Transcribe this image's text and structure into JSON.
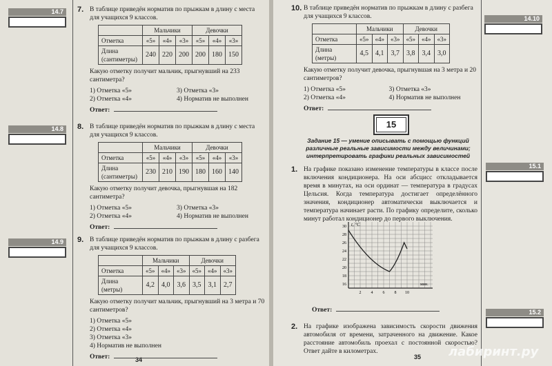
{
  "left_page": {
    "page_number": "34",
    "tasks": [
      {
        "margin_label": "14.7",
        "number": "7.",
        "intro": "В таблице приведён норматив по прыжкам в длину с места для учащихся 9 классов.",
        "table": {
          "groups": [
            "Мальчики",
            "Девочки"
          ],
          "grade_label": "Отметка",
          "grades": [
            "«5»",
            "«4»",
            "«3»",
            "«5»",
            "«4»",
            "«3»"
          ],
          "row_label": "Длина (сантиметры)",
          "values": [
            "240",
            "220",
            "200",
            "200",
            "180",
            "150"
          ]
        },
        "question": "Какую отметку получит мальчик, прыгнувший на 233 сантиметра?",
        "options": [
          "1) Отметка «5»",
          "2) Отметка «4»",
          "3) Отметка «3»",
          "4) Норматив не выполнен"
        ],
        "answer_label": "Ответ:"
      },
      {
        "margin_label": "14.8",
        "number": "8.",
        "intro": "В таблице приведён норматив по прыжкам в длину с места для учащихся 9 классов.",
        "table": {
          "groups": [
            "Мальчики",
            "Девочки"
          ],
          "grade_label": "Отметка",
          "grades": [
            "«5»",
            "«4»",
            "«3»",
            "«5»",
            "«4»",
            "«3»"
          ],
          "row_label": "Длина (сантиметры)",
          "values": [
            "230",
            "210",
            "190",
            "180",
            "160",
            "140"
          ]
        },
        "question": "Какую отметку получит девочка, прыгнувшая на 182 сантиметра?",
        "options": [
          "1) Отметка «5»",
          "2) Отметка «4»",
          "3) Отметка «3»",
          "4) Норматив не выполнен"
        ],
        "answer_label": "Ответ:"
      },
      {
        "margin_label": "14.9",
        "number": "9.",
        "intro": "В таблице приведён норматив по прыжкам в длину с разбега для учащихся 9 классов.",
        "table": {
          "groups": [
            "Мальчики",
            "Девочки"
          ],
          "grade_label": "Отметка",
          "grades": [
            "«5»",
            "«4»",
            "«3»",
            "«5»",
            "«4»",
            "«3»"
          ],
          "row_label": "Длина (метры)",
          "values": [
            "4,2",
            "4,0",
            "3,6",
            "3,5",
            "3,1",
            "2,7"
          ]
        },
        "question": "Какую отметку получит мальчик, прыгнувший на 3 метра и 70 сантиметров?",
        "options": [
          "1) Отметка «5»",
          "2) Отметка «4»",
          "3) Отметка «3»",
          "4) Норматив не выполнен"
        ],
        "answer_label": "Ответ:"
      }
    ]
  },
  "right_page": {
    "page_number": "35",
    "tasks": [
      {
        "margin_label": "14.10",
        "number": "10.",
        "intro": "В таблице приведён норматив по прыжкам в длину с разбега для учащихся 9 классов.",
        "table": {
          "groups": [
            "Мальчики",
            "Девочки"
          ],
          "grade_label": "Отметка",
          "grades": [
            "«5»",
            "«4»",
            "«3»",
            "«5»",
            "«4»",
            "«3»"
          ],
          "row_label": "Длина (метры)",
          "values": [
            "4,5",
            "4,1",
            "3,7",
            "3,8",
            "3,4",
            "3,0"
          ]
        },
        "question": "Какую отметку получит девочка, прыгнувшая на 3 метра и 20 сантиметров?",
        "options": [
          "1) Отметка «5»",
          "2) Отметка «4»",
          "3) Отметка «3»",
          "4) Норматив не выполнен"
        ],
        "answer_label": "Ответ:"
      }
    ],
    "section": {
      "number": "15",
      "heading": "Задание 15 — умение описывать с помощью функций различные реальные зависимости между величинами; интерпретировать графики реальных зависимостей",
      "problems": [
        {
          "margin_label": "15.1",
          "number": "1.",
          "text": "На графике показано изменение температуры в классе после включения кондиционера. На оси абсцисс откладывается время в минутах, на оси ординат — температура в градусах Цельсия. Когда температура достигает определённого значения, кондиционер автоматически выключается и температура начинает расти. По графику определите, сколько минут работал кондиционер до первого выключения.",
          "graph": {
            "y_label": "t, °C",
            "x_label": "мин.",
            "y_ticks": [
              "30",
              "28",
              "26",
              "24",
              "22",
              "20",
              "18",
              "16"
            ],
            "x_ticks": [
              "2",
              "4",
              "6",
              "8",
              "10"
            ]
          },
          "answer_label": "Ответ:"
        },
        {
          "margin_label": "15.2",
          "number": "2.",
          "text": "На графике изображена зависимость скорости движения автомобиля от времени, затраченного на движение. Какое расстояние автомобиль проехал с постоянной скоростью? Ответ дайте в километрах."
        }
      ]
    }
  },
  "watermark": "лабиринт.ру"
}
